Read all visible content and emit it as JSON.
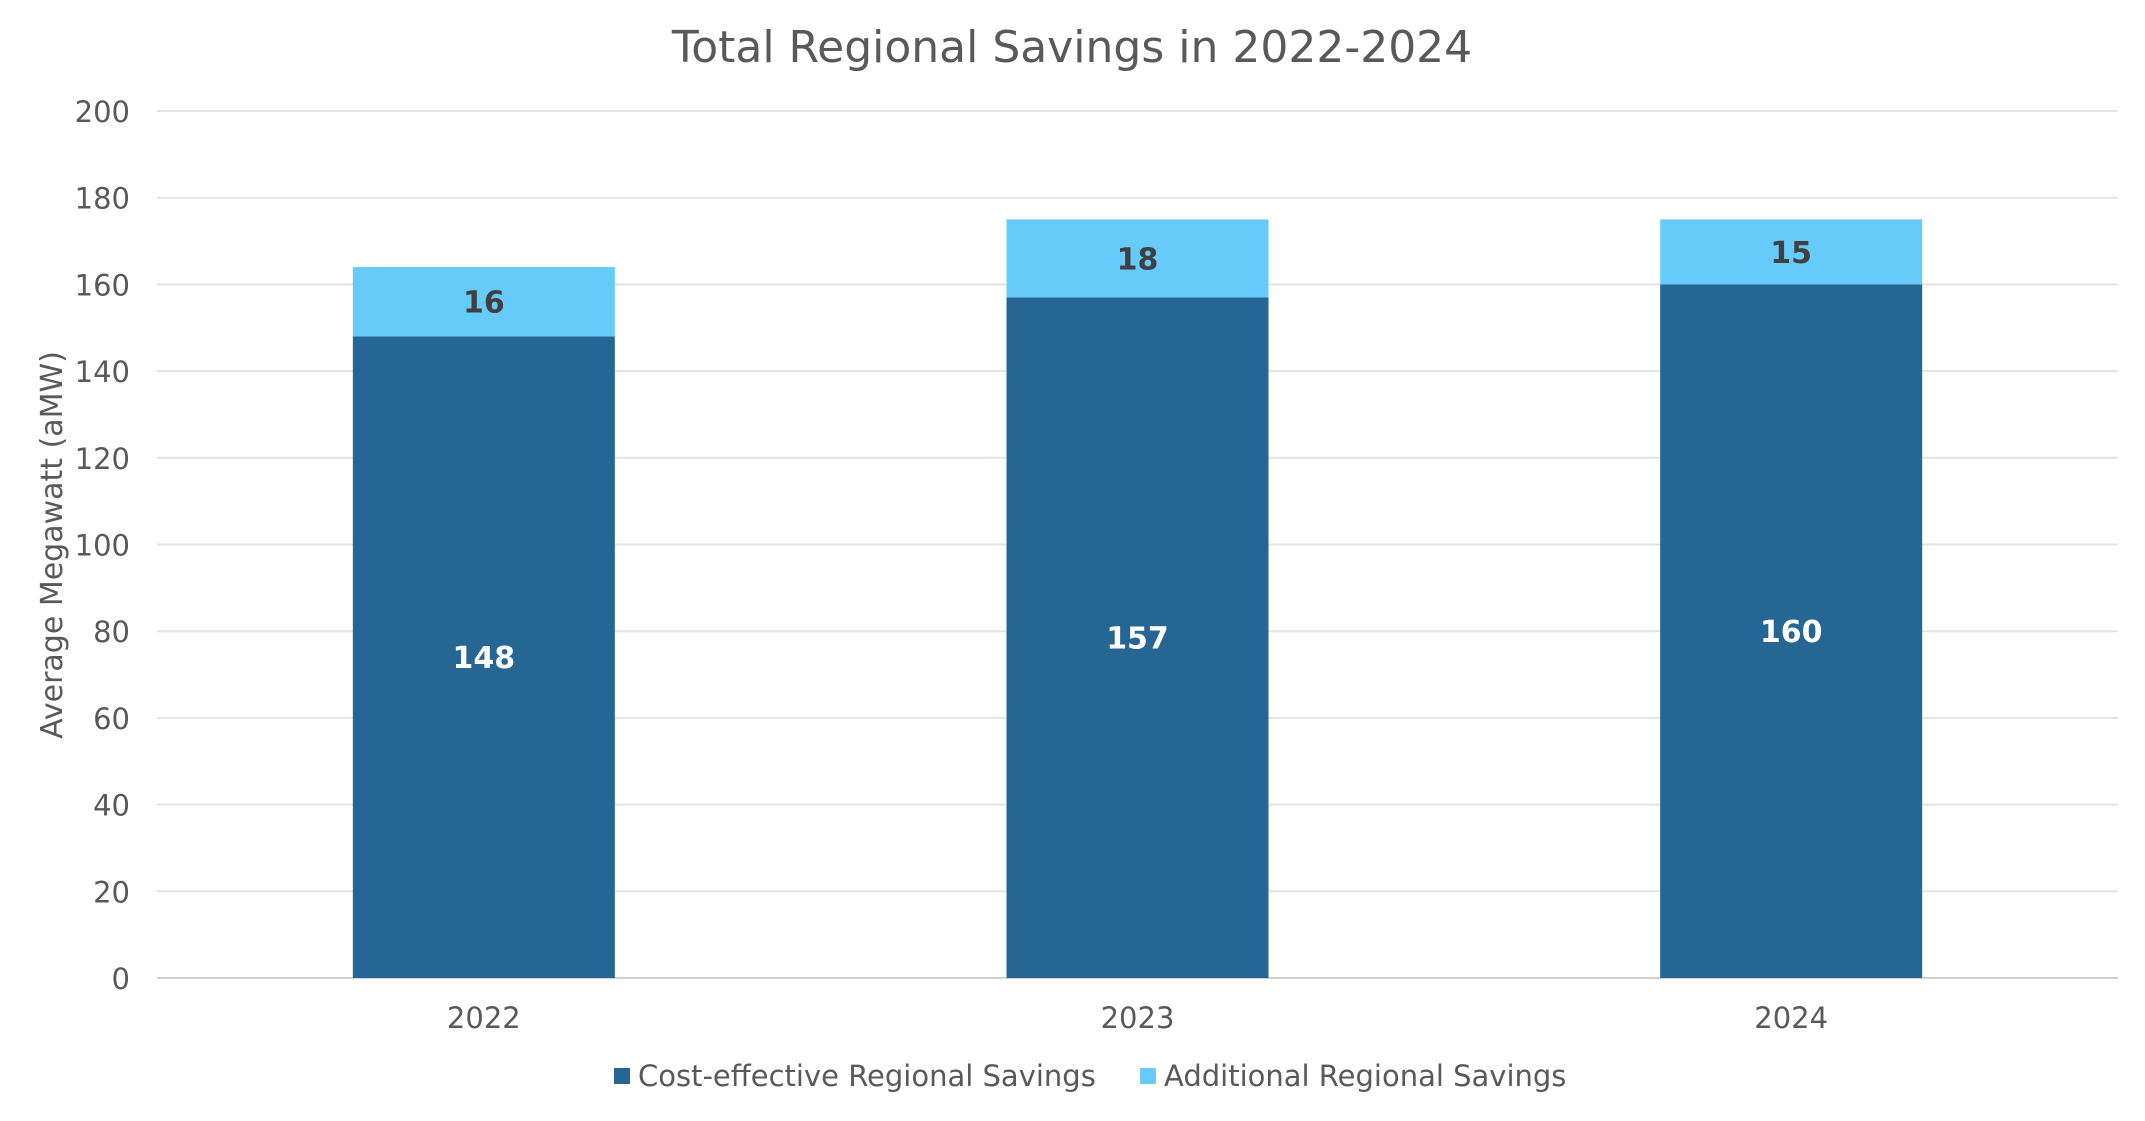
{
  "chart_data": {
    "type": "bar",
    "stacked": true,
    "title": "Total Regional Savings in 2022-2024",
    "xlabel": "",
    "ylabel": "Average Megawatt (aMW)",
    "ylim": [
      0,
      200
    ],
    "yticks": [
      0,
      20,
      40,
      60,
      80,
      100,
      120,
      140,
      160,
      180,
      200
    ],
    "grid": true,
    "legend_position": "bottom",
    "categories": [
      "2022",
      "2023",
      "2024"
    ],
    "series": [
      {
        "name": "Cost-effective Regional Savings",
        "color": "#256694",
        "label_color": "#ffffff",
        "values": [
          148,
          157,
          160
        ]
      },
      {
        "name": "Additional Regional Savings",
        "color": "#66cbfa",
        "label_color": "#404040",
        "values": [
          16,
          18,
          15
        ]
      }
    ]
  }
}
